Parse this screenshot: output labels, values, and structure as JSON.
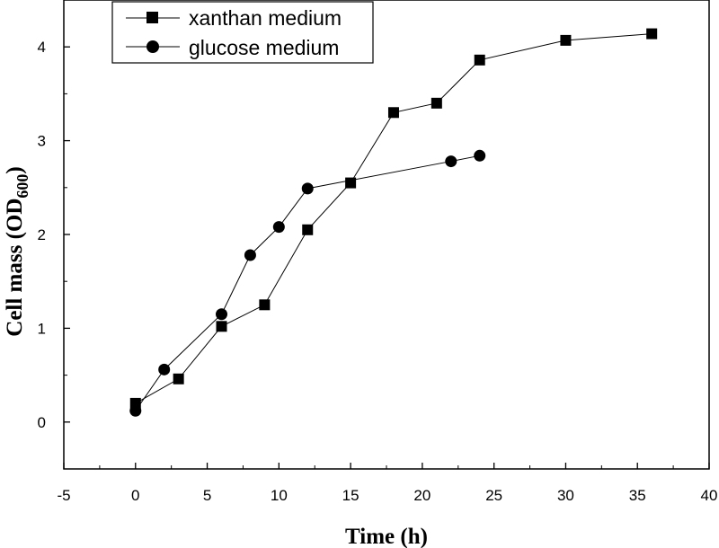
{
  "chart_data": {
    "type": "line",
    "title": "",
    "xlabel": "Time (h)",
    "ylabel": {
      "main": "Cell mass (OD",
      "sub": "600",
      "close": ")"
    },
    "xlim": [
      -5,
      40
    ],
    "ylim": [
      -0.5,
      4.5
    ],
    "xticks": [
      -5,
      0,
      5,
      10,
      15,
      20,
      25,
      30,
      35,
      40
    ],
    "yticks": [
      0,
      1,
      2,
      3,
      4
    ],
    "grid": false,
    "legend_position": "top-left",
    "series": [
      {
        "name": "xanthan medium",
        "marker": "square",
        "x": [
          0,
          3,
          6,
          9,
          12,
          15,
          18,
          21,
          24,
          30,
          36
        ],
        "y": [
          0.2,
          0.46,
          1.02,
          1.25,
          2.05,
          2.55,
          3.3,
          3.4,
          3.86,
          4.07,
          4.14
        ]
      },
      {
        "name": "glucose medium",
        "marker": "circle",
        "x": [
          0,
          2,
          6,
          8,
          10,
          12,
          22,
          24
        ],
        "y": [
          0.12,
          0.56,
          1.15,
          1.78,
          2.08,
          2.49,
          2.78,
          2.84
        ]
      }
    ]
  }
}
